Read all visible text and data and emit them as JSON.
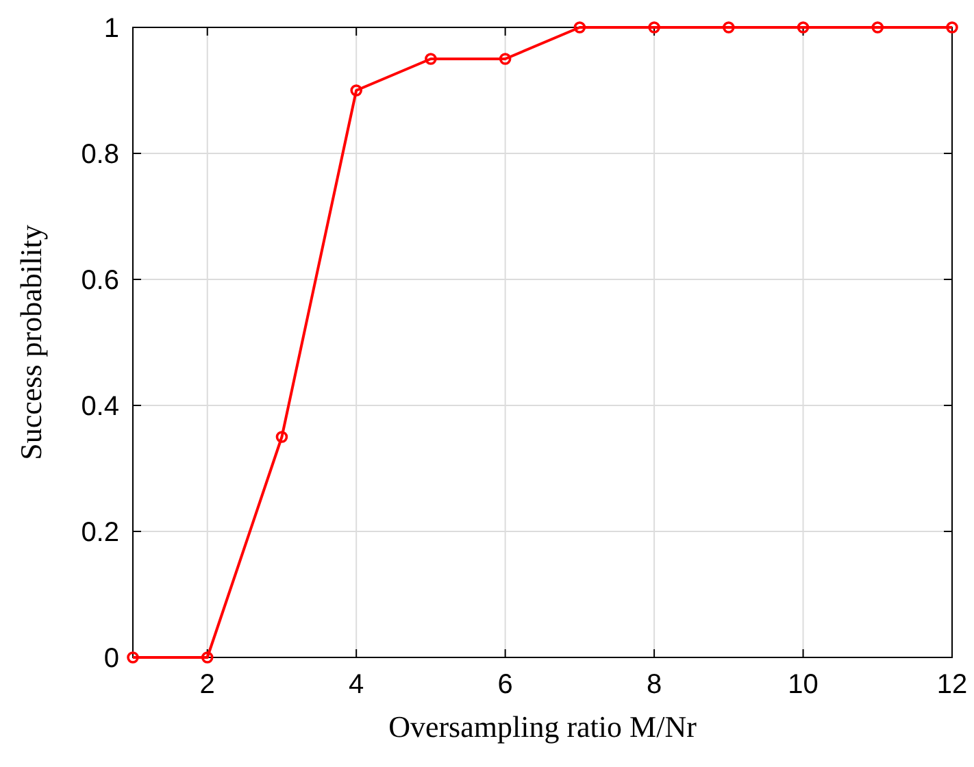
{
  "chart_data": {
    "type": "line",
    "xlabel": "Oversampling ratio M/Nr",
    "ylabel": "Success probability",
    "x": [
      1,
      2,
      3,
      4,
      5,
      6,
      7,
      8,
      9,
      10,
      11,
      12
    ],
    "series": [
      {
        "color": "#ff0000",
        "values": [
          0,
          0,
          0.35,
          0.9,
          0.95,
          0.95,
          1,
          1,
          1,
          1,
          1,
          1
        ]
      }
    ],
    "xlim": [
      1,
      12
    ],
    "xticks": [
      2,
      4,
      6,
      8,
      10,
      12
    ],
    "ylim": [
      0,
      1
    ],
    "yticks": [
      0,
      0.2,
      0.4,
      0.6,
      0.8,
      1
    ],
    "grid": true,
    "marker": "circle",
    "line_style": "solid"
  }
}
